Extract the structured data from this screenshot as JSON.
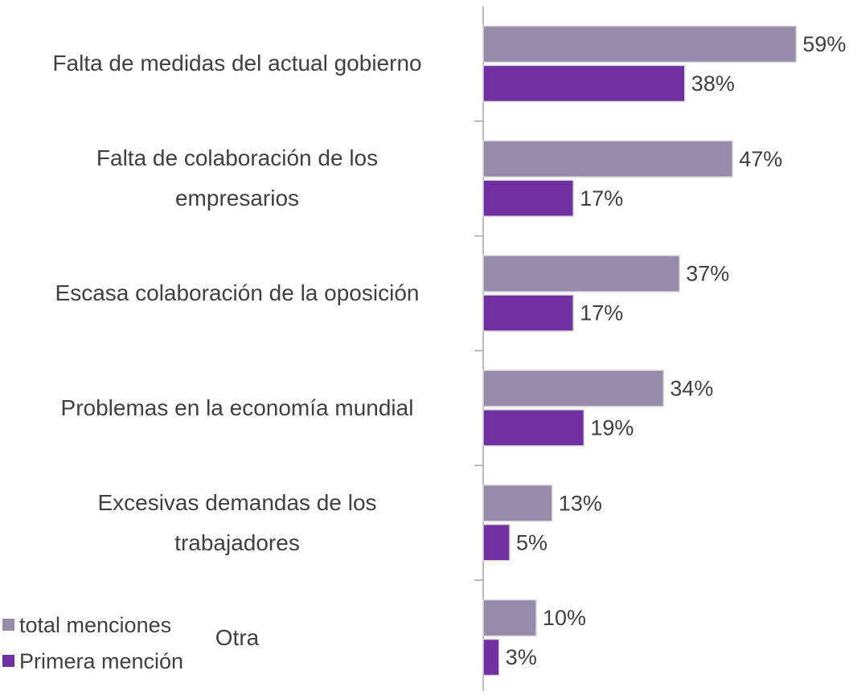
{
  "chart_data": {
    "type": "bar",
    "orientation": "horizontal",
    "categories": [
      "Falta de medidas del actual gobierno",
      "Falta de colaboración de los\nempresarios",
      "Escasa colaboración de la oposición",
      "Problemas en la economía mundial",
      "Excesivas demandas de los\ntrabajadores",
      "Otra"
    ],
    "series": [
      {
        "name": "total menciones",
        "color": "#978bab",
        "values": [
          59,
          47,
          37,
          34,
          13,
          10
        ],
        "value_labels": [
          "59%",
          "47%",
          "37%",
          "34%",
          "13%",
          "10%"
        ]
      },
      {
        "name": "Primera mención",
        "color": "#7030a0",
        "values": [
          38,
          17,
          17,
          19,
          5,
          3
        ],
        "value_labels": [
          "38%",
          "17%",
          "17%",
          "19%",
          "5%",
          "3%"
        ]
      }
    ],
    "xlim": [
      0,
      70
    ],
    "legend": "bottom-left"
  }
}
